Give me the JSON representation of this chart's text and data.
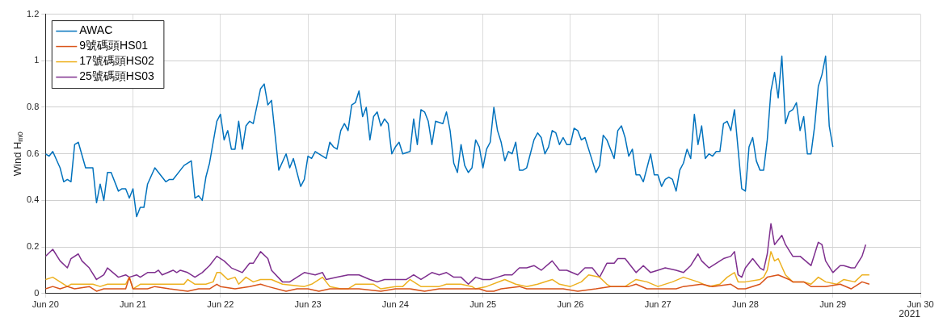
{
  "chart_data": {
    "type": "line",
    "ylabel": "Wind H$_{m0}$",
    "annotations": [
      "2021"
    ],
    "legend": "top left",
    "grid": true,
    "line_style": "solid",
    "marker": "none",
    "xlim": [
      "2021-06-20",
      "2021-06-30"
    ],
    "xticks": [
      {
        "value": "2021-06-20",
        "label": "Jun 20"
      },
      {
        "value": "2021-06-21",
        "label": "Jun 21"
      },
      {
        "value": "2021-06-22",
        "label": "Jun 22"
      },
      {
        "value": "2021-06-23",
        "label": "Jun 23"
      },
      {
        "value": "2021-06-24",
        "label": "Jun 24"
      },
      {
        "value": "2021-06-25",
        "label": "Jun 25"
      },
      {
        "value": "2021-06-26",
        "label": "Jun 26"
      },
      {
        "value": "2021-06-27",
        "label": "Jun 27"
      },
      {
        "value": "2021-06-28",
        "label": "Jun 28"
      },
      {
        "value": "2021-06-29",
        "label": "Jun 29"
      },
      {
        "value": "2021-06-30",
        "label": "Jun 30"
      }
    ],
    "ylim": [
      0,
      1.2
    ],
    "yticks": [
      0,
      0.2,
      0.4,
      0.6,
      0.8,
      1,
      1.2
    ],
    "series": [
      {
        "name": "AWAC",
        "color": "#0072bd",
        "x": [
          "2021-06-20T00:00",
          "2021-06-20T01:00",
          "2021-06-20T02:00",
          "2021-06-20T04:00",
          "2021-06-20T05:00",
          "2021-06-20T06:00",
          "2021-06-20T07:00",
          "2021-06-20T08:00",
          "2021-06-20T09:00",
          "2021-06-20T11:00",
          "2021-06-20T13:00",
          "2021-06-20T14:00",
          "2021-06-20T15:00",
          "2021-06-20T16:00",
          "2021-06-20T17:00",
          "2021-06-20T18:00",
          "2021-06-20T20:00",
          "2021-06-20T21:00",
          "2021-06-20T22:00",
          "2021-06-20T23:00",
          "2021-06-21T00:00",
          "2021-06-21T01:00",
          "2021-06-21T02:00",
          "2021-06-21T03:00",
          "2021-06-21T04:00",
          "2021-06-21T06:00",
          "2021-06-21T09:00",
          "2021-06-21T10:00",
          "2021-06-21T11:00",
          "2021-06-21T14:00",
          "2021-06-21T16:00",
          "2021-06-21T17:00",
          "2021-06-21T18:00",
          "2021-06-21T19:00",
          "2021-06-21T20:00",
          "2021-06-21T21:00",
          "2021-06-21T23:00",
          "2021-06-22T00:00",
          "2021-06-22T01:00",
          "2021-06-22T02:00",
          "2021-06-22T03:00",
          "2021-06-22T04:00",
          "2021-06-22T05:00",
          "2021-06-22T06:00",
          "2021-06-22T07:00",
          "2021-06-22T08:00",
          "2021-06-22T09:00",
          "2021-06-22T11:00",
          "2021-06-22T12:00",
          "2021-06-22T13:00",
          "2021-06-22T14:00",
          "2021-06-22T16:00",
          "2021-06-22T18:00",
          "2021-06-22T19:00",
          "2021-06-22T20:00",
          "2021-06-22T22:00",
          "2021-06-22T23:00",
          "2021-06-23T00:00",
          "2021-06-23T01:00",
          "2021-06-23T02:00",
          "2021-06-23T05:00",
          "2021-06-23T06:00",
          "2021-06-23T07:00",
          "2021-06-23T08:00",
          "2021-06-23T09:00",
          "2021-06-23T10:00",
          "2021-06-23T11:00",
          "2021-06-23T12:00",
          "2021-06-23T13:00",
          "2021-06-23T14:00",
          "2021-06-23T15:00",
          "2021-06-23T16:00",
          "2021-06-23T17:00",
          "2021-06-23T18:00",
          "2021-06-23T19:00",
          "2021-06-23T20:00",
          "2021-06-23T21:00",
          "2021-06-23T22:00",
          "2021-06-23T23:00",
          "2021-06-24T00:00",
          "2021-06-24T01:00",
          "2021-06-24T02:00",
          "2021-06-24T04:00",
          "2021-06-24T05:00",
          "2021-06-24T06:00",
          "2021-06-24T07:00",
          "2021-06-24T08:00",
          "2021-06-24T09:00",
          "2021-06-24T10:00",
          "2021-06-24T11:00",
          "2021-06-24T13:00",
          "2021-06-24T14:00",
          "2021-06-24T15:00",
          "2021-06-24T16:00",
          "2021-06-24T17:00",
          "2021-06-24T18:00",
          "2021-06-24T19:00",
          "2021-06-24T20:00",
          "2021-06-24T21:00",
          "2021-06-24T22:00",
          "2021-06-24T23:00",
          "2021-06-25T00:00",
          "2021-06-25T01:00",
          "2021-06-25T02:00",
          "2021-06-25T03:00",
          "2021-06-25T04:00",
          "2021-06-25T05:00",
          "2021-06-25T06:00",
          "2021-06-25T07:00",
          "2021-06-25T08:00",
          "2021-06-25T09:00",
          "2021-06-25T10:00",
          "2021-06-25T11:00",
          "2021-06-25T12:00",
          "2021-06-25T13:00",
          "2021-06-25T14:00",
          "2021-06-25T15:00",
          "2021-06-25T16:00",
          "2021-06-25T17:00",
          "2021-06-25T18:00",
          "2021-06-25T19:00",
          "2021-06-25T20:00",
          "2021-06-25T21:00",
          "2021-06-25T22:00",
          "2021-06-25T23:00",
          "2021-06-26T00:00",
          "2021-06-26T01:00",
          "2021-06-26T02:00",
          "2021-06-26T03:00",
          "2021-06-26T04:00",
          "2021-06-26T06:00",
          "2021-06-26T07:00",
          "2021-06-26T08:00",
          "2021-06-26T09:00",
          "2021-06-26T10:00",
          "2021-06-26T12:00",
          "2021-06-26T13:00",
          "2021-06-26T14:00",
          "2021-06-26T15:00",
          "2021-06-26T16:00",
          "2021-06-26T17:00",
          "2021-06-26T18:00",
          "2021-06-26T19:00",
          "2021-06-26T20:00",
          "2021-06-26T22:00",
          "2021-06-26T23:00",
          "2021-06-27T00:00",
          "2021-06-27T01:00",
          "2021-06-27T02:00",
          "2021-06-27T03:00",
          "2021-06-27T04:00",
          "2021-06-27T05:00",
          "2021-06-27T06:00",
          "2021-06-27T07:00",
          "2021-06-27T08:00",
          "2021-06-27T09:00",
          "2021-06-27T10:00",
          "2021-06-27T11:00",
          "2021-06-27T12:00",
          "2021-06-27T13:00",
          "2021-06-27T14:00",
          "2021-06-27T15:00",
          "2021-06-27T16:00",
          "2021-06-27T17:00",
          "2021-06-27T18:00",
          "2021-06-27T19:00",
          "2021-06-27T20:00",
          "2021-06-27T21:00",
          "2021-06-27T23:00",
          "2021-06-28T00:00",
          "2021-06-28T01:00",
          "2021-06-28T02:00",
          "2021-06-28T03:00",
          "2021-06-28T04:00",
          "2021-06-28T05:00",
          "2021-06-28T06:00",
          "2021-06-28T07:00",
          "2021-06-28T08:00",
          "2021-06-28T09:00",
          "2021-06-28T10:00",
          "2021-06-28T11:00",
          "2021-06-28T12:00",
          "2021-06-28T13:00",
          "2021-06-28T14:00",
          "2021-06-28T15:00",
          "2021-06-28T16:00",
          "2021-06-28T17:00",
          "2021-06-28T18:00",
          "2021-06-28T19:00",
          "2021-06-28T20:00",
          "2021-06-28T21:00",
          "2021-06-28T22:00",
          "2021-06-28T23:00",
          "2021-06-29T00:00"
        ],
        "values": [
          0.6,
          0.59,
          0.61,
          0.54,
          0.48,
          0.49,
          0.48,
          0.64,
          0.65,
          0.54,
          0.54,
          0.39,
          0.47,
          0.4,
          0.52,
          0.52,
          0.44,
          0.45,
          0.45,
          0.41,
          0.45,
          0.33,
          0.37,
          0.37,
          0.47,
          0.54,
          0.48,
          0.49,
          0.49,
          0.55,
          0.57,
          0.41,
          0.42,
          0.4,
          0.5,
          0.56,
          0.74,
          0.77,
          0.66,
          0.7,
          0.62,
          0.62,
          0.74,
          0.62,
          0.72,
          0.74,
          0.73,
          0.88,
          0.9,
          0.81,
          0.83,
          0.53,
          0.6,
          0.54,
          0.58,
          0.46,
          0.49,
          0.59,
          0.58,
          0.61,
          0.58,
          0.65,
          0.63,
          0.62,
          0.7,
          0.73,
          0.7,
          0.81,
          0.82,
          0.87,
          0.76,
          0.8,
          0.66,
          0.76,
          0.78,
          0.72,
          0.75,
          0.73,
          0.6,
          0.63,
          0.65,
          0.6,
          0.61,
          0.75,
          0.64,
          0.79,
          0.78,
          0.74,
          0.64,
          0.74,
          0.73,
          0.78,
          0.7,
          0.56,
          0.52,
          0.64,
          0.55,
          0.52,
          0.54,
          0.66,
          0.63,
          0.54,
          0.62,
          0.65,
          0.8,
          0.7,
          0.65,
          0.57,
          0.61,
          0.6,
          0.65,
          0.53,
          0.53,
          0.54,
          0.6,
          0.66,
          0.69,
          0.67,
          0.6,
          0.63,
          0.7,
          0.69,
          0.64,
          0.67,
          0.64,
          0.64,
          0.71,
          0.7,
          0.66,
          0.67,
          0.57,
          0.52,
          0.55,
          0.68,
          0.66,
          0.58,
          0.7,
          0.72,
          0.67,
          0.59,
          0.62,
          0.51,
          0.51,
          0.48,
          0.6,
          0.51,
          0.51,
          0.46,
          0.49,
          0.5,
          0.49,
          0.44,
          0.53,
          0.56,
          0.62,
          0.58,
          0.77,
          0.64,
          0.72,
          0.58,
          0.6,
          0.59,
          0.61,
          0.61,
          0.73,
          0.74,
          0.7,
          0.79,
          0.45,
          0.44,
          0.63,
          0.67,
          0.57,
          0.53,
          0.53,
          0.66,
          0.87,
          0.95,
          0.84,
          1.02,
          0.73,
          0.78,
          0.79,
          0.82,
          0.7,
          0.76,
          0.6,
          0.6,
          0.72,
          0.89,
          0.94,
          1.02,
          0.72,
          0.63
        ]
      },
      {
        "name": "9號碼頭HS01",
        "color": "#d95319",
        "x": [
          "2021-06-20T00:00",
          "2021-06-20T02:00",
          "2021-06-20T04:00",
          "2021-06-20T06:00",
          "2021-06-20T08:00",
          "2021-06-20T12:00",
          "2021-06-20T14:00",
          "2021-06-20T16:00",
          "2021-06-20T22:00",
          "2021-06-20T23:00",
          "2021-06-21T00:00",
          "2021-06-21T04:00",
          "2021-06-21T06:00",
          "2021-06-21T10:00",
          "2021-06-21T15:00",
          "2021-06-21T18:00",
          "2021-06-21T21:00",
          "2021-06-21T23:00",
          "2021-06-22T00:00",
          "2021-06-22T04:00",
          "2021-06-22T08:00",
          "2021-06-22T11:00",
          "2021-06-22T13:00",
          "2021-06-22T18:00",
          "2021-06-22T21:00",
          "2021-06-23T00:00",
          "2021-06-23T03:00",
          "2021-06-23T06:00",
          "2021-06-23T10:00",
          "2021-06-23T14:00",
          "2021-06-23T20:00",
          "2021-06-24T00:00",
          "2021-06-24T04:00",
          "2021-06-24T08:00",
          "2021-06-24T12:00",
          "2021-06-24T15:00",
          "2021-06-24T20:00",
          "2021-06-24T23:00",
          "2021-06-25T01:00",
          "2021-06-25T03:00",
          "2021-06-25T05:00",
          "2021-06-25T10:00",
          "2021-06-25T12:00",
          "2021-06-25T19:00",
          "2021-06-25T22:00",
          "2021-06-26T02:00",
          "2021-06-26T07:00",
          "2021-06-26T11:00",
          "2021-06-26T15:00",
          "2021-06-26T16:00",
          "2021-06-26T18:00",
          "2021-06-26T21:00",
          "2021-06-27T02:00",
          "2021-06-27T05:00",
          "2021-06-27T07:00",
          "2021-06-27T12:00",
          "2021-06-27T15:00",
          "2021-06-27T20:00",
          "2021-06-27T22:00",
          "2021-06-28T00:00",
          "2021-06-28T04:00",
          "2021-06-28T06:00",
          "2021-06-28T09:00",
          "2021-06-28T12:00",
          "2021-06-28T13:00",
          "2021-06-28T16:00",
          "2021-06-28T18:00",
          "2021-06-28T22:00",
          "2021-06-29T02:00",
          "2021-06-29T05:00",
          "2021-06-29T08:00",
          "2021-06-29T10:00"
        ],
        "values": [
          0.02,
          0.03,
          0.02,
          0.03,
          0.02,
          0.03,
          0.01,
          0.02,
          0.02,
          0.07,
          0.02,
          0.02,
          0.03,
          0.02,
          0.01,
          0.02,
          0.02,
          0.04,
          0.03,
          0.02,
          0.03,
          0.04,
          0.03,
          0.01,
          0.02,
          0.02,
          0.01,
          0.02,
          0.02,
          0.02,
          0.01,
          0.02,
          0.02,
          0.01,
          0.02,
          0.02,
          0.02,
          0.02,
          0.01,
          0.01,
          0.02,
          0.03,
          0.02,
          0.02,
          0.02,
          0.01,
          0.02,
          0.03,
          0.03,
          0.03,
          0.04,
          0.02,
          0.02,
          0.02,
          0.03,
          0.04,
          0.03,
          0.04,
          0.02,
          0.02,
          0.04,
          0.07,
          0.08,
          0.06,
          0.05,
          0.05,
          0.03,
          0.03,
          0.04,
          0.02,
          0.05,
          0.04
        ]
      },
      {
        "name": "17號碼頭HS02",
        "color": "#edb120",
        "x": [
          "2021-06-20T00:00",
          "2021-06-20T02:00",
          "2021-06-20T04:00",
          "2021-06-20T06:00",
          "2021-06-20T07:00",
          "2021-06-20T13:00",
          "2021-06-20T15:00",
          "2021-06-20T17:00",
          "2021-06-20T20:00",
          "2021-06-20T22:00",
          "2021-06-20T23:00",
          "2021-06-21T00:00",
          "2021-06-21T02:00",
          "2021-06-21T06:00",
          "2021-06-21T08:00",
          "2021-06-21T10:00",
          "2021-06-21T12:00",
          "2021-06-21T14:00",
          "2021-06-21T15:00",
          "2021-06-21T17:00",
          "2021-06-21T20:00",
          "2021-06-21T22:00",
          "2021-06-21T23:00",
          "2021-06-22T00:00",
          "2021-06-22T02:00",
          "2021-06-22T04:00",
          "2021-06-22T05:00",
          "2021-06-22T07:00",
          "2021-06-22T09:00",
          "2021-06-22T11:00",
          "2021-06-22T14:00",
          "2021-06-22T17:00",
          "2021-06-22T23:00",
          "2021-06-23T01:00",
          "2021-06-23T04:00",
          "2021-06-23T06:00",
          "2021-06-23T09:00",
          "2021-06-23T11:00",
          "2021-06-23T13:00",
          "2021-06-23T14:00",
          "2021-06-23T18:00",
          "2021-06-23T20:00",
          "2021-06-24T00:00",
          "2021-06-24T02:00",
          "2021-06-24T04:00",
          "2021-06-24T07:00",
          "2021-06-24T12:00",
          "2021-06-24T14:00",
          "2021-06-24T18:00",
          "2021-06-24T21:00",
          "2021-06-24T22:00",
          "2021-06-25T01:00",
          "2021-06-25T06:00",
          "2021-06-25T09:00",
          "2021-06-25T12:00",
          "2021-06-25T15:00",
          "2021-06-25T19:00",
          "2021-06-25T21:00",
          "2021-06-26T00:00",
          "2021-06-26T03:00",
          "2021-06-26T05:00",
          "2021-06-26T08:00",
          "2021-06-26T10:00",
          "2021-06-26T11:00",
          "2021-06-26T15:00",
          "2021-06-26T18:00",
          "2021-06-26T21:00",
          "2021-06-27T00:00",
          "2021-06-27T04:00",
          "2021-06-27T07:00",
          "2021-06-27T11:00",
          "2021-06-27T14:00",
          "2021-06-27T17:00",
          "2021-06-27T19:00",
          "2021-06-27T21:00",
          "2021-06-27T22:00",
          "2021-06-28T00:00",
          "2021-06-28T04:00",
          "2021-06-28T05:00",
          "2021-06-28T06:00",
          "2021-06-28T07:00",
          "2021-06-28T08:00",
          "2021-06-28T09:00",
          "2021-06-28T11:00",
          "2021-06-28T13:00",
          "2021-06-28T16:00",
          "2021-06-28T18:00",
          "2021-06-28T20:00",
          "2021-06-28T22:00",
          "2021-06-29T01:00",
          "2021-06-29T03:00",
          "2021-06-29T06:00",
          "2021-06-29T08:00",
          "2021-06-29T10:00"
        ],
        "values": [
          0.06,
          0.07,
          0.05,
          0.03,
          0.04,
          0.04,
          0.03,
          0.04,
          0.04,
          0.04,
          0.07,
          0.02,
          0.04,
          0.04,
          0.04,
          0.04,
          0.04,
          0.04,
          0.06,
          0.04,
          0.04,
          0.05,
          0.09,
          0.09,
          0.06,
          0.07,
          0.04,
          0.07,
          0.05,
          0.06,
          0.06,
          0.04,
          0.03,
          0.04,
          0.07,
          0.03,
          0.02,
          0.02,
          0.04,
          0.04,
          0.04,
          0.02,
          0.03,
          0.03,
          0.06,
          0.03,
          0.03,
          0.04,
          0.04,
          0.03,
          0.02,
          0.03,
          0.06,
          0.04,
          0.03,
          0.04,
          0.06,
          0.04,
          0.03,
          0.05,
          0.08,
          0.07,
          0.04,
          0.03,
          0.03,
          0.06,
          0.05,
          0.03,
          0.05,
          0.07,
          0.05,
          0.03,
          0.04,
          0.07,
          0.09,
          0.05,
          0.05,
          0.06,
          0.07,
          0.1,
          0.18,
          0.14,
          0.15,
          0.08,
          0.05,
          0.05,
          0.04,
          0.07,
          0.05,
          0.04,
          0.06,
          0.05,
          0.08,
          0.08
        ]
      },
      {
        "name": "25號碼頭HS03",
        "color": "#7e2f8e",
        "x": [
          "2021-06-20T00:00",
          "2021-06-20T02:00",
          "2021-06-20T04:00",
          "2021-06-20T06:00",
          "2021-06-20T07:00",
          "2021-06-20T09:00",
          "2021-06-20T10:00",
          "2021-06-20T12:00",
          "2021-06-20T14:00",
          "2021-06-20T16:00",
          "2021-06-20T17:00",
          "2021-06-20T20:00",
          "2021-06-20T22:00",
          "2021-06-20T23:00",
          "2021-06-21T01:00",
          "2021-06-21T02:00",
          "2021-06-21T04:00",
          "2021-06-21T06:00",
          "2021-06-21T07:00",
          "2021-06-21T08:00",
          "2021-06-21T11:00",
          "2021-06-21T12:00",
          "2021-06-21T13:00",
          "2021-06-21T15:00",
          "2021-06-21T17:00",
          "2021-06-21T19:00",
          "2021-06-21T21:00",
          "2021-06-21T23:00",
          "2021-06-22T01:00",
          "2021-06-22T03:00",
          "2021-06-22T06:00",
          "2021-06-22T08:00",
          "2021-06-22T09:00",
          "2021-06-22T11:00",
          "2021-06-22T13:00",
          "2021-06-22T14:00",
          "2021-06-22T17:00",
          "2021-06-22T19:00",
          "2021-06-22T23:00",
          "2021-06-23T02:00",
          "2021-06-23T04:00",
          "2021-06-23T05:00",
          "2021-06-23T08:00",
          "2021-06-23T11:00",
          "2021-06-23T14:00",
          "2021-06-23T17:00",
          "2021-06-23T19:00",
          "2021-06-23T21:00",
          "2021-06-24T00:00",
          "2021-06-24T03:00",
          "2021-06-24T05:00",
          "2021-06-24T07:00",
          "2021-06-24T10:00",
          "2021-06-24T12:00",
          "2021-06-24T14:00",
          "2021-06-24T16:00",
          "2021-06-24T18:00",
          "2021-06-24T20:00",
          "2021-06-24T22:00",
          "2021-06-25T00:00",
          "2021-06-25T02:00",
          "2021-06-25T04:00",
          "2021-06-25T06:00",
          "2021-06-25T08:00",
          "2021-06-25T10:00",
          "2021-06-25T12:00",
          "2021-06-25T14:00",
          "2021-06-25T16:00",
          "2021-06-25T19:00",
          "2021-06-25T21:00",
          "2021-06-25T23:00",
          "2021-06-26T02:00",
          "2021-06-26T04:00",
          "2021-06-26T06:00",
          "2021-06-26T08:00",
          "2021-06-26T10:00",
          "2021-06-26T12:00",
          "2021-06-26T13:00",
          "2021-06-26T15:00",
          "2021-06-26T18:00",
          "2021-06-26T20:00",
          "2021-06-26T22:00",
          "2021-06-27T00:00",
          "2021-06-27T02:00",
          "2021-06-27T05:00",
          "2021-06-27T07:00",
          "2021-06-27T09:00",
          "2021-06-27T11:00",
          "2021-06-27T12:00",
          "2021-06-27T14:00",
          "2021-06-27T16:00",
          "2021-06-27T18:00",
          "2021-06-27T20:00",
          "2021-06-27T21:00",
          "2021-06-27T22:00",
          "2021-06-27T23:00",
          "2021-06-28T00:00",
          "2021-06-28T02:00",
          "2021-06-28T04:00",
          "2021-06-28T05:00",
          "2021-06-28T06:00",
          "2021-06-28T07:00",
          "2021-06-28T08:00",
          "2021-06-28T10:00",
          "2021-06-28T11:00",
          "2021-06-28T13:00",
          "2021-06-28T15:00",
          "2021-06-28T18:00",
          "2021-06-28T20:00",
          "2021-06-28T21:00",
          "2021-06-28T22:00",
          "2021-06-29T00:00",
          "2021-06-29T02:00",
          "2021-06-29T03:00",
          "2021-06-29T05:00",
          "2021-06-29T06:00",
          "2021-06-29T08:00",
          "2021-06-29T09:00"
        ],
        "values": [
          0.16,
          0.19,
          0.14,
          0.11,
          0.15,
          0.17,
          0.14,
          0.11,
          0.06,
          0.08,
          0.11,
          0.07,
          0.08,
          0.07,
          0.08,
          0.07,
          0.09,
          0.09,
          0.1,
          0.08,
          0.1,
          0.09,
          0.1,
          0.09,
          0.07,
          0.09,
          0.12,
          0.16,
          0.14,
          0.11,
          0.09,
          0.13,
          0.13,
          0.18,
          0.15,
          0.1,
          0.05,
          0.05,
          0.09,
          0.08,
          0.09,
          0.06,
          0.07,
          0.08,
          0.08,
          0.06,
          0.05,
          0.06,
          0.06,
          0.06,
          0.08,
          0.06,
          0.09,
          0.08,
          0.09,
          0.07,
          0.07,
          0.04,
          0.07,
          0.06,
          0.06,
          0.07,
          0.08,
          0.08,
          0.11,
          0.11,
          0.12,
          0.1,
          0.14,
          0.1,
          0.1,
          0.08,
          0.11,
          0.11,
          0.07,
          0.13,
          0.13,
          0.15,
          0.15,
          0.09,
          0.12,
          0.09,
          0.1,
          0.11,
          0.1,
          0.09,
          0.12,
          0.17,
          0.14,
          0.11,
          0.13,
          0.15,
          0.16,
          0.18,
          0.08,
          0.07,
          0.11,
          0.15,
          0.11,
          0.1,
          0.17,
          0.3,
          0.21,
          0.25,
          0.21,
          0.16,
          0.16,
          0.12,
          0.22,
          0.21,
          0.14,
          0.09,
          0.12,
          0.12,
          0.11,
          0.11,
          0.16,
          0.21
        ]
      }
    ]
  }
}
